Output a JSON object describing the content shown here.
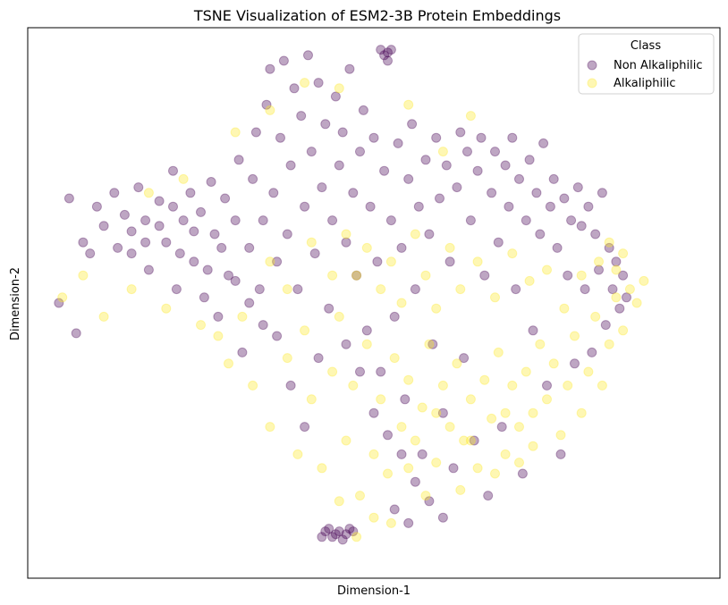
{
  "chart_data": {
    "type": "scatter",
    "title": "TSNE Visualization of ESM2-3B Protein Embeddings",
    "xlabel": "Dimension-1",
    "ylabel": "Dimension-2",
    "xlim": [
      -1.0,
      1.0
    ],
    "ylim": [
      -1.0,
      1.0
    ],
    "grid": false,
    "ticks_visible": false,
    "legend": {
      "title": "Class",
      "placement": "top-right",
      "entries": [
        "Non Alkaliphilic",
        "Alkaliphilic"
      ]
    },
    "colors": {
      "non_alkaliphilic": "#440154",
      "alkaliphilic": "#fde725"
    },
    "marker_alpha": 0.35,
    "series": [
      {
        "name": "Non Alkaliphilic",
        "points": [
          [
            -0.88,
            0.38
          ],
          [
            -0.91,
            0.0
          ],
          [
            -0.86,
            -0.11
          ],
          [
            -0.84,
            0.22
          ],
          [
            -0.82,
            0.18
          ],
          [
            -0.8,
            0.35
          ],
          [
            -0.78,
            0.28
          ],
          [
            -0.75,
            0.4
          ],
          [
            -0.72,
            0.32
          ],
          [
            -0.7,
            0.18
          ],
          [
            -0.68,
            0.42
          ],
          [
            -0.66,
            0.3
          ],
          [
            -0.65,
            0.12
          ],
          [
            -0.62,
            0.37
          ],
          [
            -0.6,
            0.22
          ],
          [
            -0.58,
            0.48
          ],
          [
            -0.57,
            0.05
          ],
          [
            -0.55,
            0.3
          ],
          [
            -0.53,
            0.4
          ],
          [
            -0.52,
            0.15
          ],
          [
            -0.5,
            0.33
          ],
          [
            -0.49,
            0.02
          ],
          [
            -0.47,
            0.44
          ],
          [
            -0.46,
            0.25
          ],
          [
            -0.45,
            -0.05
          ],
          [
            -0.43,
            0.38
          ],
          [
            -0.42,
            0.1
          ],
          [
            -0.4,
            0.3
          ],
          [
            -0.39,
            0.52
          ],
          [
            -0.38,
            -0.18
          ],
          [
            -0.36,
            0.2
          ],
          [
            -0.35,
            0.45
          ],
          [
            -0.34,
            0.62
          ],
          [
            -0.33,
            0.05
          ],
          [
            -0.32,
            0.3
          ],
          [
            -0.31,
            0.72
          ],
          [
            -0.3,
            0.85
          ],
          [
            -0.29,
            0.4
          ],
          [
            -0.28,
            0.15
          ],
          [
            -0.27,
            0.6
          ],
          [
            -0.26,
            0.88
          ],
          [
            -0.25,
            0.25
          ],
          [
            -0.24,
            0.5
          ],
          [
            -0.23,
            0.78
          ],
          [
            -0.22,
            0.05
          ],
          [
            -0.21,
            0.68
          ],
          [
            -0.2,
            0.35
          ],
          [
            -0.19,
            0.9
          ],
          [
            -0.18,
            0.55
          ],
          [
            -0.17,
            0.18
          ],
          [
            -0.16,
            0.8
          ],
          [
            -0.15,
            0.42
          ],
          [
            -0.14,
            0.65
          ],
          [
            -0.13,
            -0.02
          ],
          [
            -0.12,
            0.3
          ],
          [
            -0.11,
            0.75
          ],
          [
            -0.1,
            0.5
          ],
          [
            -0.09,
            0.62
          ],
          [
            -0.08,
            0.22
          ],
          [
            -0.07,
            0.85
          ],
          [
            -0.06,
            0.4
          ],
          [
            -0.05,
            0.1
          ],
          [
            -0.04,
            0.55
          ],
          [
            -0.03,
            0.7
          ],
          [
            -0.02,
            -0.1
          ],
          [
            -0.01,
            0.35
          ],
          [
            0.0,
            0.6
          ],
          [
            0.01,
            0.15
          ],
          [
            0.02,
            -0.25
          ],
          [
            0.03,
            0.48
          ],
          [
            0.04,
            0.88
          ],
          [
            0.05,
            0.3
          ],
          [
            0.06,
            -0.05
          ],
          [
            0.07,
            0.58
          ],
          [
            0.08,
            0.2
          ],
          [
            0.09,
            -0.35
          ],
          [
            0.1,
            0.45
          ],
          [
            0.11,
            0.65
          ],
          [
            0.12,
            0.05
          ],
          [
            0.13,
            0.35
          ],
          [
            0.14,
            -0.55
          ],
          [
            0.15,
            0.52
          ],
          [
            0.16,
            0.25
          ],
          [
            0.17,
            -0.15
          ],
          [
            0.18,
            0.6
          ],
          [
            0.19,
            0.38
          ],
          [
            0.2,
            -0.4
          ],
          [
            0.21,
            0.5
          ],
          [
            0.22,
            0.15
          ],
          [
            0.23,
            -0.6
          ],
          [
            0.24,
            0.42
          ],
          [
            0.25,
            0.62
          ],
          [
            0.26,
            -0.2
          ],
          [
            0.27,
            0.55
          ],
          [
            0.28,
            0.3
          ],
          [
            0.29,
            -0.5
          ],
          [
            0.3,
            0.48
          ],
          [
            0.31,
            0.6
          ],
          [
            0.32,
            0.1
          ],
          [
            0.33,
            -0.7
          ],
          [
            0.34,
            0.4
          ],
          [
            0.35,
            0.55
          ],
          [
            0.36,
            0.22
          ],
          [
            0.37,
            -0.45
          ],
          [
            0.38,
            0.5
          ],
          [
            0.39,
            0.35
          ],
          [
            0.4,
            0.6
          ],
          [
            0.41,
            0.05
          ],
          [
            0.42,
            0.45
          ],
          [
            0.43,
            -0.62
          ],
          [
            0.44,
            0.3
          ],
          [
            0.45,
            0.52
          ],
          [
            0.46,
            -0.1
          ],
          [
            0.47,
            0.4
          ],
          [
            0.48,
            0.25
          ],
          [
            0.49,
            0.58
          ],
          [
            0.5,
            -0.3
          ],
          [
            0.51,
            0.35
          ],
          [
            0.52,
            0.45
          ],
          [
            0.53,
            0.2
          ],
          [
            0.54,
            -0.55
          ],
          [
            0.55,
            0.38
          ],
          [
            0.56,
            0.1
          ],
          [
            0.57,
            0.3
          ],
          [
            0.58,
            -0.22
          ],
          [
            0.59,
            0.42
          ],
          [
            0.6,
            0.28
          ],
          [
            0.61,
            0.05
          ],
          [
            0.62,
            0.35
          ],
          [
            0.63,
            -0.18
          ],
          [
            0.64,
            0.25
          ],
          [
            0.65,
            0.12
          ],
          [
            0.66,
            0.4
          ],
          [
            0.67,
            -0.08
          ],
          [
            0.68,
            0.2
          ],
          [
            0.69,
            0.05
          ],
          [
            0.7,
            0.15
          ],
          [
            0.71,
            -0.02
          ],
          [
            0.72,
            0.1
          ],
          [
            0.73,
            0.02
          ],
          [
            -0.15,
            -0.85
          ],
          [
            -0.14,
            -0.83
          ],
          [
            -0.13,
            -0.82
          ],
          [
            -0.12,
            -0.85
          ],
          [
            -0.11,
            -0.84
          ],
          [
            -0.1,
            -0.83
          ],
          [
            -0.09,
            -0.86
          ],
          [
            -0.08,
            -0.84
          ],
          [
            -0.07,
            -0.82
          ],
          [
            -0.06,
            -0.83
          ],
          [
            0.02,
            0.92
          ],
          [
            0.03,
            0.9
          ],
          [
            0.04,
            0.91
          ],
          [
            0.05,
            0.92
          ],
          [
            -0.58,
            0.35
          ],
          [
            -0.62,
            0.28
          ],
          [
            -0.66,
            0.22
          ],
          [
            -0.7,
            0.26
          ],
          [
            -0.74,
            0.2
          ],
          [
            -0.56,
            0.18
          ],
          [
            -0.52,
            0.26
          ],
          [
            -0.48,
            0.12
          ],
          [
            -0.44,
            0.2
          ],
          [
            -0.4,
            0.08
          ],
          [
            -0.36,
            0.0
          ],
          [
            -0.32,
            -0.08
          ],
          [
            -0.28,
            -0.12
          ],
          [
            -0.24,
            -0.3
          ],
          [
            -0.2,
            -0.45
          ],
          [
            -0.16,
            -0.2
          ],
          [
            -0.08,
            -0.15
          ],
          [
            -0.04,
            -0.25
          ],
          [
            0.0,
            -0.4
          ],
          [
            0.04,
            -0.48
          ],
          [
            0.08,
            -0.55
          ],
          [
            0.12,
            -0.65
          ],
          [
            0.16,
            -0.72
          ],
          [
            0.2,
            -0.78
          ],
          [
            0.1,
            -0.8
          ],
          [
            0.06,
            -0.75
          ]
        ]
      },
      {
        "name": "Alkaliphilic",
        "points": [
          [
            -0.9,
            0.02
          ],
          [
            -0.84,
            0.1
          ],
          [
            -0.78,
            -0.05
          ],
          [
            -0.7,
            0.05
          ],
          [
            -0.6,
            -0.02
          ],
          [
            -0.5,
            -0.08
          ],
          [
            -0.42,
            -0.22
          ],
          [
            -0.35,
            -0.3
          ],
          [
            -0.3,
            -0.45
          ],
          [
            -0.25,
            -0.2
          ],
          [
            -0.22,
            -0.55
          ],
          [
            -0.2,
            -0.1
          ],
          [
            -0.18,
            -0.35
          ],
          [
            -0.15,
            -0.6
          ],
          [
            -0.12,
            -0.25
          ],
          [
            -0.1,
            -0.05
          ],
          [
            -0.08,
            -0.5
          ],
          [
            -0.06,
            -0.3
          ],
          [
            -0.04,
            -0.7
          ],
          [
            -0.02,
            -0.15
          ],
          [
            0.0,
            -0.55
          ],
          [
            0.02,
            -0.35
          ],
          [
            0.04,
            -0.62
          ],
          [
            0.06,
            -0.2
          ],
          [
            0.08,
            -0.45
          ],
          [
            0.1,
            -0.28
          ],
          [
            0.12,
            -0.5
          ],
          [
            0.14,
            -0.38
          ],
          [
            0.16,
            -0.15
          ],
          [
            0.18,
            -0.58
          ],
          [
            0.2,
            -0.3
          ],
          [
            0.22,
            -0.45
          ],
          [
            0.24,
            -0.22
          ],
          [
            0.26,
            -0.5
          ],
          [
            0.28,
            -0.35
          ],
          [
            0.3,
            -0.6
          ],
          [
            0.32,
            -0.28
          ],
          [
            0.34,
            -0.42
          ],
          [
            0.36,
            -0.18
          ],
          [
            0.38,
            -0.55
          ],
          [
            0.4,
            -0.3
          ],
          [
            0.42,
            -0.45
          ],
          [
            0.44,
            -0.25
          ],
          [
            0.46,
            -0.4
          ],
          [
            0.48,
            -0.15
          ],
          [
            0.5,
            -0.35
          ],
          [
            0.52,
            -0.22
          ],
          [
            0.54,
            -0.48
          ],
          [
            0.56,
            -0.3
          ],
          [
            0.58,
            -0.12
          ],
          [
            0.6,
            -0.4
          ],
          [
            0.62,
            -0.25
          ],
          [
            0.64,
            -0.05
          ],
          [
            0.66,
            -0.3
          ],
          [
            0.68,
            -0.15
          ],
          [
            0.7,
            0.02
          ],
          [
            0.72,
            -0.1
          ],
          [
            0.74,
            0.05
          ],
          [
            0.76,
            0.0
          ],
          [
            0.78,
            0.08
          ],
          [
            -0.05,
            0.1
          ],
          [
            -0.02,
            0.2
          ],
          [
            0.02,
            0.05
          ],
          [
            0.05,
            0.15
          ],
          [
            0.08,
            0.0
          ],
          [
            0.12,
            0.25
          ],
          [
            0.15,
            0.1
          ],
          [
            0.18,
            -0.02
          ],
          [
            0.22,
            0.2
          ],
          [
            0.25,
            0.05
          ],
          [
            -0.12,
            0.1
          ],
          [
            -0.08,
            0.25
          ],
          [
            -0.3,
            0.15
          ],
          [
            -0.25,
            0.05
          ],
          [
            -0.18,
            0.22
          ],
          [
            0.3,
            0.15
          ],
          [
            0.35,
            0.02
          ],
          [
            0.4,
            0.18
          ],
          [
            0.45,
            0.08
          ],
          [
            0.5,
            0.12
          ],
          [
            0.55,
            -0.02
          ],
          [
            0.6,
            0.1
          ],
          [
            0.65,
            0.15
          ],
          [
            0.68,
            0.22
          ],
          [
            0.7,
            0.12
          ],
          [
            0.72,
            0.18
          ],
          [
            -0.4,
            0.62
          ],
          [
            -0.3,
            0.7
          ],
          [
            -0.2,
            0.8
          ],
          [
            -0.1,
            0.78
          ],
          [
            0.1,
            0.72
          ],
          [
            0.2,
            0.55
          ],
          [
            0.28,
            0.68
          ],
          [
            -0.55,
            0.45
          ],
          [
            -0.65,
            0.4
          ],
          [
            -0.45,
            -0.12
          ],
          [
            -0.38,
            -0.05
          ],
          [
            0.05,
            -0.8
          ],
          [
            0.15,
            -0.7
          ],
          [
            -0.1,
            -0.72
          ],
          [
            0.25,
            -0.68
          ],
          [
            0.35,
            -0.62
          ],
          [
            0.42,
            -0.58
          ],
          [
            -0.05,
            -0.85
          ],
          [
            0.0,
            -0.78
          ],
          [
            0.1,
            -0.6
          ],
          [
            0.18,
            -0.4
          ],
          [
            0.28,
            -0.5
          ],
          [
            0.38,
            -0.4
          ],
          [
            0.46,
            -0.52
          ]
        ]
      }
    ]
  }
}
